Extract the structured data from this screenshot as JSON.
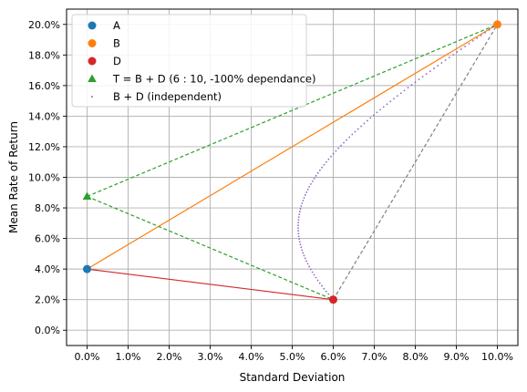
{
  "chart_data": {
    "type": "scatter",
    "xlabel": "Standard Deviation",
    "ylabel": "Mean Rate of Return",
    "xlim": [
      -0.005,
      0.105
    ],
    "ylim": [
      -0.01,
      0.21
    ],
    "grid": true,
    "legend_position": "top-left",
    "x_ticks": [
      "0.0%",
      "1.0%",
      "2.0%",
      "3.0%",
      "4.0%",
      "5.0%",
      "6.0%",
      "7.0%",
      "8.0%",
      "9.0%",
      "10.0%"
    ],
    "y_ticks": [
      "0.0%",
      "2.0%",
      "4.0%",
      "6.0%",
      "8.0%",
      "10.0%",
      "12.0%",
      "14.0%",
      "16.0%",
      "18.0%",
      "20.0%"
    ],
    "points": [
      {
        "name": "A",
        "x": 0.0,
        "y": 0.04,
        "color": "#1f77b4",
        "marker": "circle"
      },
      {
        "name": "B",
        "x": 0.1,
        "y": 0.2,
        "color": "#ff7f0e",
        "marker": "circle"
      },
      {
        "name": "D",
        "x": 0.06,
        "y": 0.02,
        "color": "#d62728",
        "marker": "circle"
      },
      {
        "name": "T = B + D (6 : 10, -100% dependance)",
        "x": 0.0,
        "y": 0.0875,
        "color": "#2ca02c",
        "marker": "triangle"
      }
    ],
    "curve": {
      "name": "B + D (independent)",
      "color": "#9467bd",
      "marker": "dot",
      "from": "D",
      "to": "B",
      "samples": 100
    },
    "lines": [
      {
        "from": [
          0.0,
          0.04
        ],
        "to": [
          0.1,
          0.2
        ],
        "color": "#ff7f0e",
        "style": "solid"
      },
      {
        "from": [
          0.0,
          0.04
        ],
        "to": [
          0.06,
          0.02
        ],
        "color": "#d62728",
        "style": "solid"
      },
      {
        "from": [
          0.0,
          0.0875
        ],
        "to": [
          0.1,
          0.2
        ],
        "color": "#2ca02c",
        "style": "dashed"
      },
      {
        "from": [
          0.0,
          0.0875
        ],
        "to": [
          0.06,
          0.02
        ],
        "color": "#2ca02c",
        "style": "dashed"
      },
      {
        "from": [
          0.06,
          0.02
        ],
        "to": [
          0.1,
          0.2
        ],
        "color": "#808080",
        "style": "dashed"
      }
    ],
    "legend": [
      {
        "label": "A",
        "color": "#1f77b4",
        "marker": "circle"
      },
      {
        "label": "B",
        "color": "#ff7f0e",
        "marker": "circle"
      },
      {
        "label": "D",
        "color": "#d62728",
        "marker": "circle"
      },
      {
        "label": "T = B + D (6 : 10, -100% dependance)",
        "color": "#2ca02c",
        "marker": "triangle"
      },
      {
        "label": "B + D (independent)",
        "color": "#9467bd",
        "marker": "dot"
      }
    ]
  }
}
